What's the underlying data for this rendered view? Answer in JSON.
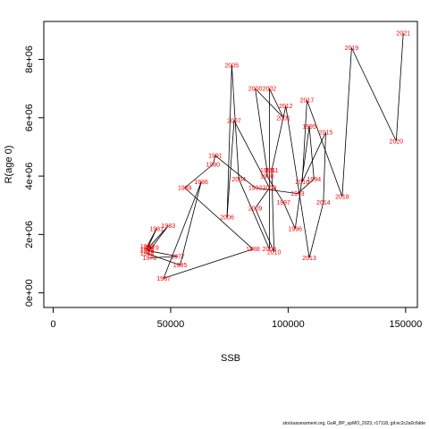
{
  "chart_data": {
    "type": "line",
    "title": "",
    "xlabel": "SSB",
    "ylabel": "R(age 0)",
    "xlim": [
      -4000,
      155000
    ],
    "ylim": [
      -500000,
      9300000
    ],
    "x_ticks": [
      0,
      50000,
      100000,
      150000
    ],
    "x_tick_labels": [
      "0",
      "50000",
      "100000",
      "150000"
    ],
    "y_ticks": [
      0,
      2000000,
      4000000,
      6000000,
      8000000
    ],
    "y_tick_labels": [
      "0e+00",
      "2e+06",
      "4e+06",
      "6e+06",
      "8e+06"
    ],
    "grid": false,
    "line_color": "#000000",
    "label_color": "#ff0000",
    "points": [
      {
        "year": "1976",
        "x": 41000,
        "y": 1200000
      },
      {
        "year": "1977",
        "x": 53000,
        "y": 1250000
      },
      {
        "year": "1978",
        "x": 40000,
        "y": 1450000
      },
      {
        "year": "1979",
        "x": 42000,
        "y": 1550000
      },
      {
        "year": "1980",
        "x": 40000,
        "y": 1600000
      },
      {
        "year": "1981",
        "x": 44000,
        "y": 2200000
      },
      {
        "year": "1982",
        "x": 40000,
        "y": 1500000
      },
      {
        "year": "1983",
        "x": 49000,
        "y": 2300000
      },
      {
        "year": "1984",
        "x": 40000,
        "y": 1350000
      },
      {
        "year": "1985",
        "x": 54000,
        "y": 950000
      },
      {
        "year": "1986",
        "x": 63000,
        "y": 3800000
      },
      {
        "year": "1987",
        "x": 47000,
        "y": 500000
      },
      {
        "year": "1988",
        "x": 85000,
        "y": 1500000
      },
      {
        "year": "1989",
        "x": 56000,
        "y": 3600000
      },
      {
        "year": "1990",
        "x": 68000,
        "y": 4400000
      },
      {
        "year": "1991",
        "x": 69000,
        "y": 4700000
      },
      {
        "year": "1992",
        "x": 86000,
        "y": 3600000
      },
      {
        "year": "1993",
        "x": 104000,
        "y": 3400000
      },
      {
        "year": "1994",
        "x": 111000,
        "y": 3900000
      },
      {
        "year": "1995",
        "x": 109000,
        "y": 5700000
      },
      {
        "year": "1996",
        "x": 103000,
        "y": 2200000
      },
      {
        "year": "1997",
        "x": 98000,
        "y": 3100000
      },
      {
        "year": "1998",
        "x": 91000,
        "y": 4000000
      },
      {
        "year": "1999",
        "x": 91000,
        "y": 4200000
      },
      {
        "year": "2000",
        "x": 86000,
        "y": 7000000
      },
      {
        "year": "2001",
        "x": 98000,
        "y": 6000000
      },
      {
        "year": "2002",
        "x": 92000,
        "y": 7000000
      },
      {
        "year": "2003",
        "x": 92000,
        "y": 1500000
      },
      {
        "year": "2004",
        "x": 79000,
        "y": 3900000
      },
      {
        "year": "2005",
        "x": 76000,
        "y": 7800000
      },
      {
        "year": "2006",
        "x": 74000,
        "y": 2600000
      },
      {
        "year": "2007",
        "x": 77000,
        "y": 5900000
      },
      {
        "year": "2008",
        "x": 92000,
        "y": 3600000
      },
      {
        "year": "2009",
        "x": 86000,
        "y": 2900000
      },
      {
        "year": "2010",
        "x": 94000,
        "y": 1400000
      },
      {
        "year": "2011",
        "x": 93000,
        "y": 4200000
      },
      {
        "year": "2012",
        "x": 99000,
        "y": 6400000
      },
      {
        "year": "2013",
        "x": 109000,
        "y": 1200000
      },
      {
        "year": "2014",
        "x": 115000,
        "y": 3100000
      },
      {
        "year": "2015",
        "x": 116000,
        "y": 5500000
      },
      {
        "year": "2016",
        "x": 106000,
        "y": 3800000
      },
      {
        "year": "2017",
        "x": 108000,
        "y": 6600000
      },
      {
        "year": "2018",
        "x": 123000,
        "y": 3300000
      },
      {
        "year": "2019",
        "x": 127000,
        "y": 8400000
      },
      {
        "year": "2020",
        "x": 146000,
        "y": 5200000
      },
      {
        "year": "2021",
        "x": 149000,
        "y": 8900000
      }
    ]
  },
  "footer_text": "stockassessment.org, GoR_BP_upMO_2023, r17118, git:ec2c2a0c6dde"
}
